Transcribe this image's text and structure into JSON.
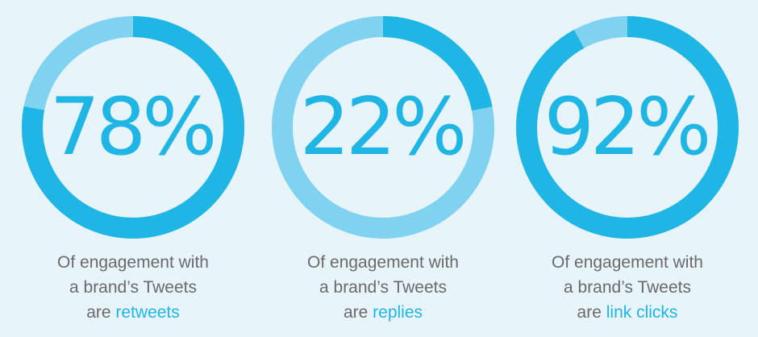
{
  "chart_data": [
    {
      "type": "pie",
      "value": 78,
      "label": "78%",
      "caption_line1": "Of engagement with",
      "caption_line2": "a brand’s Tweets",
      "caption_prefix": "are",
      "caption_highlight": "retweets"
    },
    {
      "type": "pie",
      "value": 22,
      "label": "22%",
      "caption_line1": "Of engagement with",
      "caption_line2": "a brand’s Tweets",
      "caption_prefix": "are",
      "caption_highlight": "replies"
    },
    {
      "type": "pie",
      "value": 92,
      "label": "92%",
      "caption_line1": "Of engagement with",
      "caption_line2": "a brand’s Tweets",
      "caption_prefix": "are",
      "caption_highlight": "link clicks"
    }
  ],
  "colors": {
    "value_arc": "#1fb6e5",
    "remainder_arc": "#7fd3f0",
    "background": "#e7f4f9",
    "text": "#6a6a6a"
  }
}
